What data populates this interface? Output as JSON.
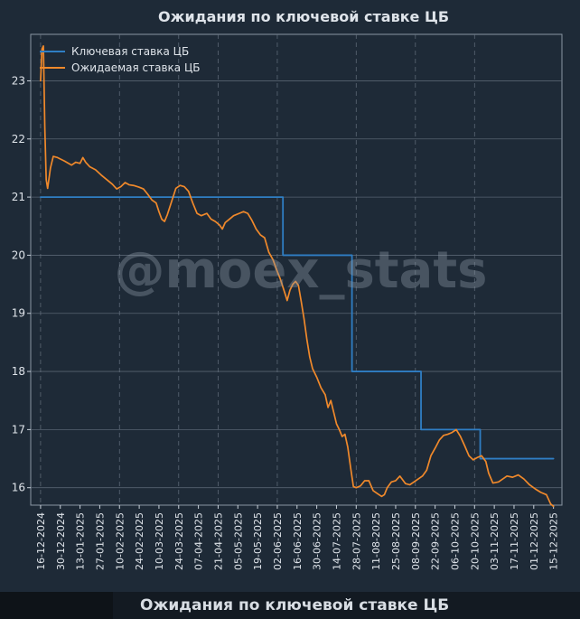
{
  "colors": {
    "background": "#1e2a37",
    "axes_face": "#1e2a37",
    "grid": "#6b7785",
    "text": "#dfe4ea",
    "key_rate": "#2f7ec4",
    "expected_rate": "#f0892b",
    "watermark": "#8d99a6"
  },
  "watermark": "@moex_stats",
  "bottom_caption": "Ожидания по ключевой ставке ЦБ",
  "chart_data": {
    "type": "line",
    "title": "Ожидания по ключевой ставке ЦБ",
    "xlabel": "",
    "ylabel": "",
    "x_axis": "date",
    "xlim": [
      "2024-12-09",
      "2025-12-21"
    ],
    "ylim": [
      15.7,
      23.8
    ],
    "yticks": [
      16,
      17,
      18,
      19,
      20,
      21,
      22,
      23
    ],
    "xtick_labels": [
      "16-12-2024",
      "30-12-2024",
      "13-01-2025",
      "27-01-2025",
      "10-02-2025",
      "24-02-2025",
      "10-03-2025",
      "24-03-2025",
      "07-04-2025",
      "21-04-2025",
      "05-05-2025",
      "19-05-2025",
      "02-06-2025",
      "16-06-2025",
      "30-06-2025",
      "14-07-2025",
      "28-07-2025",
      "11-08-2025",
      "25-08-2025",
      "08-09-2025",
      "22-09-2025",
      "06-10-2025",
      "20-10-2025",
      "03-11-2025",
      "17-11-2025",
      "01-12-2025",
      "15-12-2025"
    ],
    "xtick_dates": [
      "2024-12-16",
      "2024-12-30",
      "2025-01-13",
      "2025-01-27",
      "2025-02-10",
      "2025-02-24",
      "2025-03-10",
      "2025-03-24",
      "2025-04-07",
      "2025-04-21",
      "2025-05-05",
      "2025-05-19",
      "2025-06-02",
      "2025-06-16",
      "2025-06-30",
      "2025-07-14",
      "2025-07-28",
      "2025-08-11",
      "2025-08-25",
      "2025-09-08",
      "2025-09-22",
      "2025-10-06",
      "2025-10-20",
      "2025-11-03",
      "2025-11-17",
      "2025-12-01",
      "2025-12-15"
    ],
    "vertical_grid_dates": [
      "2024-12-16",
      "2025-02-10",
      "2025-03-24",
      "2025-04-21",
      "2025-06-02",
      "2025-07-28",
      "2025-09-08",
      "2025-10-20"
    ],
    "grid": true,
    "legend_position": "top-left",
    "series": [
      {
        "name": "Ключевая ставка ЦБ",
        "color": "#2f7ec4",
        "step": true,
        "points": [
          [
            "2024-12-16",
            21
          ],
          [
            "2025-06-06",
            21
          ],
          [
            "2025-06-06",
            20
          ],
          [
            "2025-07-25",
            20
          ],
          [
            "2025-07-25",
            18
          ],
          [
            "2025-09-12",
            18
          ],
          [
            "2025-09-12",
            17
          ],
          [
            "2025-10-24",
            17
          ],
          [
            "2025-10-24",
            16.5
          ],
          [
            "2025-12-15",
            16.5
          ]
        ]
      },
      {
        "name": "Ожидаемая ставка ЦБ",
        "color": "#f0892b",
        "step": false,
        "points": [
          [
            "2024-12-16",
            23.0
          ],
          [
            "2024-12-17",
            23.55
          ],
          [
            "2024-12-18",
            23.6
          ],
          [
            "2024-12-19",
            22.2
          ],
          [
            "2024-12-20",
            21.3
          ],
          [
            "2024-12-21",
            21.15
          ],
          [
            "2024-12-23",
            21.5
          ],
          [
            "2024-12-25",
            21.7
          ],
          [
            "2024-12-28",
            21.68
          ],
          [
            "2025-01-02",
            21.62
          ],
          [
            "2025-01-07",
            21.55
          ],
          [
            "2025-01-10",
            21.6
          ],
          [
            "2025-01-13",
            21.58
          ],
          [
            "2025-01-15",
            21.68
          ],
          [
            "2025-01-17",
            21.6
          ],
          [
            "2025-01-20",
            21.52
          ],
          [
            "2025-01-24",
            21.47
          ],
          [
            "2025-01-28",
            21.38
          ],
          [
            "2025-02-01",
            21.3
          ],
          [
            "2025-02-05",
            21.22
          ],
          [
            "2025-02-08",
            21.14
          ],
          [
            "2025-02-11",
            21.18
          ],
          [
            "2025-02-14",
            21.25
          ],
          [
            "2025-02-17",
            21.21
          ],
          [
            "2025-02-20",
            21.2
          ],
          [
            "2025-02-24",
            21.17
          ],
          [
            "2025-02-27",
            21.14
          ],
          [
            "2025-03-02",
            21.05
          ],
          [
            "2025-03-05",
            20.95
          ],
          [
            "2025-03-08",
            20.9
          ],
          [
            "2025-03-10",
            20.75
          ],
          [
            "2025-03-12",
            20.62
          ],
          [
            "2025-03-14",
            20.58
          ],
          [
            "2025-03-16",
            20.7
          ],
          [
            "2025-03-18",
            20.85
          ],
          [
            "2025-03-20",
            21.0
          ],
          [
            "2025-03-22",
            21.15
          ],
          [
            "2025-03-25",
            21.2
          ],
          [
            "2025-03-28",
            21.18
          ],
          [
            "2025-03-31",
            21.1
          ],
          [
            "2025-04-03",
            20.9
          ],
          [
            "2025-04-06",
            20.72
          ],
          [
            "2025-04-09",
            20.68
          ],
          [
            "2025-04-13",
            20.72
          ],
          [
            "2025-04-16",
            20.62
          ],
          [
            "2025-04-19",
            20.58
          ],
          [
            "2025-04-22",
            20.52
          ],
          [
            "2025-04-24",
            20.45
          ],
          [
            "2025-04-26",
            20.56
          ],
          [
            "2025-04-29",
            20.62
          ],
          [
            "2025-05-02",
            20.68
          ],
          [
            "2025-05-06",
            20.72
          ],
          [
            "2025-05-09",
            20.75
          ],
          [
            "2025-05-12",
            20.72
          ],
          [
            "2025-05-15",
            20.6
          ],
          [
            "2025-05-18",
            20.45
          ],
          [
            "2025-05-21",
            20.35
          ],
          [
            "2025-05-24",
            20.3
          ],
          [
            "2025-05-27",
            20.05
          ],
          [
            "2025-05-30",
            19.92
          ],
          [
            "2025-06-02",
            19.72
          ],
          [
            "2025-06-04",
            19.6
          ],
          [
            "2025-06-06",
            19.45
          ],
          [
            "2025-06-08",
            19.3
          ],
          [
            "2025-06-09",
            19.22
          ],
          [
            "2025-06-11",
            19.4
          ],
          [
            "2025-06-13",
            19.5
          ],
          [
            "2025-06-15",
            19.55
          ],
          [
            "2025-06-17",
            19.48
          ],
          [
            "2025-06-19",
            19.2
          ],
          [
            "2025-06-21",
            18.9
          ],
          [
            "2025-06-23",
            18.55
          ],
          [
            "2025-06-25",
            18.25
          ],
          [
            "2025-06-27",
            18.05
          ],
          [
            "2025-06-30",
            17.9
          ],
          [
            "2025-07-03",
            17.72
          ],
          [
            "2025-07-06",
            17.6
          ],
          [
            "2025-07-08",
            17.38
          ],
          [
            "2025-07-10",
            17.5
          ],
          [
            "2025-07-12",
            17.3
          ],
          [
            "2025-07-14",
            17.1
          ],
          [
            "2025-07-16",
            17.0
          ],
          [
            "2025-07-18",
            16.88
          ],
          [
            "2025-07-20",
            16.92
          ],
          [
            "2025-07-22",
            16.7
          ],
          [
            "2025-07-24",
            16.35
          ],
          [
            "2025-07-26",
            16.02
          ],
          [
            "2025-07-28",
            16.0
          ],
          [
            "2025-07-31",
            16.03
          ],
          [
            "2025-08-03",
            16.12
          ],
          [
            "2025-08-06",
            16.12
          ],
          [
            "2025-08-09",
            15.95
          ],
          [
            "2025-08-12",
            15.9
          ],
          [
            "2025-08-15",
            15.85
          ],
          [
            "2025-08-17",
            15.88
          ],
          [
            "2025-08-19",
            16.0
          ],
          [
            "2025-08-22",
            16.1
          ],
          [
            "2025-08-25",
            16.12
          ],
          [
            "2025-08-28",
            16.2
          ],
          [
            "2025-09-01",
            16.07
          ],
          [
            "2025-09-04",
            16.05
          ],
          [
            "2025-09-07",
            16.1
          ],
          [
            "2025-09-10",
            16.15
          ],
          [
            "2025-09-13",
            16.2
          ],
          [
            "2025-09-16",
            16.3
          ],
          [
            "2025-09-19",
            16.55
          ],
          [
            "2025-09-22",
            16.68
          ],
          [
            "2025-09-25",
            16.82
          ],
          [
            "2025-09-28",
            16.9
          ],
          [
            "2025-10-01",
            16.92
          ],
          [
            "2025-10-04",
            16.95
          ],
          [
            "2025-10-07",
            17.0
          ],
          [
            "2025-10-10",
            16.88
          ],
          [
            "2025-10-13",
            16.72
          ],
          [
            "2025-10-16",
            16.55
          ],
          [
            "2025-10-19",
            16.48
          ],
          [
            "2025-10-22",
            16.52
          ],
          [
            "2025-10-25",
            16.55
          ],
          [
            "2025-10-28",
            16.45
          ],
          [
            "2025-10-30",
            16.25
          ],
          [
            "2025-11-02",
            16.08
          ],
          [
            "2025-11-06",
            16.1
          ],
          [
            "2025-11-09",
            16.15
          ],
          [
            "2025-11-12",
            16.2
          ],
          [
            "2025-11-16",
            16.18
          ],
          [
            "2025-11-20",
            16.22
          ],
          [
            "2025-11-24",
            16.15
          ],
          [
            "2025-11-28",
            16.05
          ],
          [
            "2025-12-02",
            15.98
          ],
          [
            "2025-12-06",
            15.92
          ],
          [
            "2025-12-10",
            15.88
          ],
          [
            "2025-12-13",
            15.72
          ],
          [
            "2025-12-15",
            15.68
          ]
        ]
      }
    ]
  }
}
